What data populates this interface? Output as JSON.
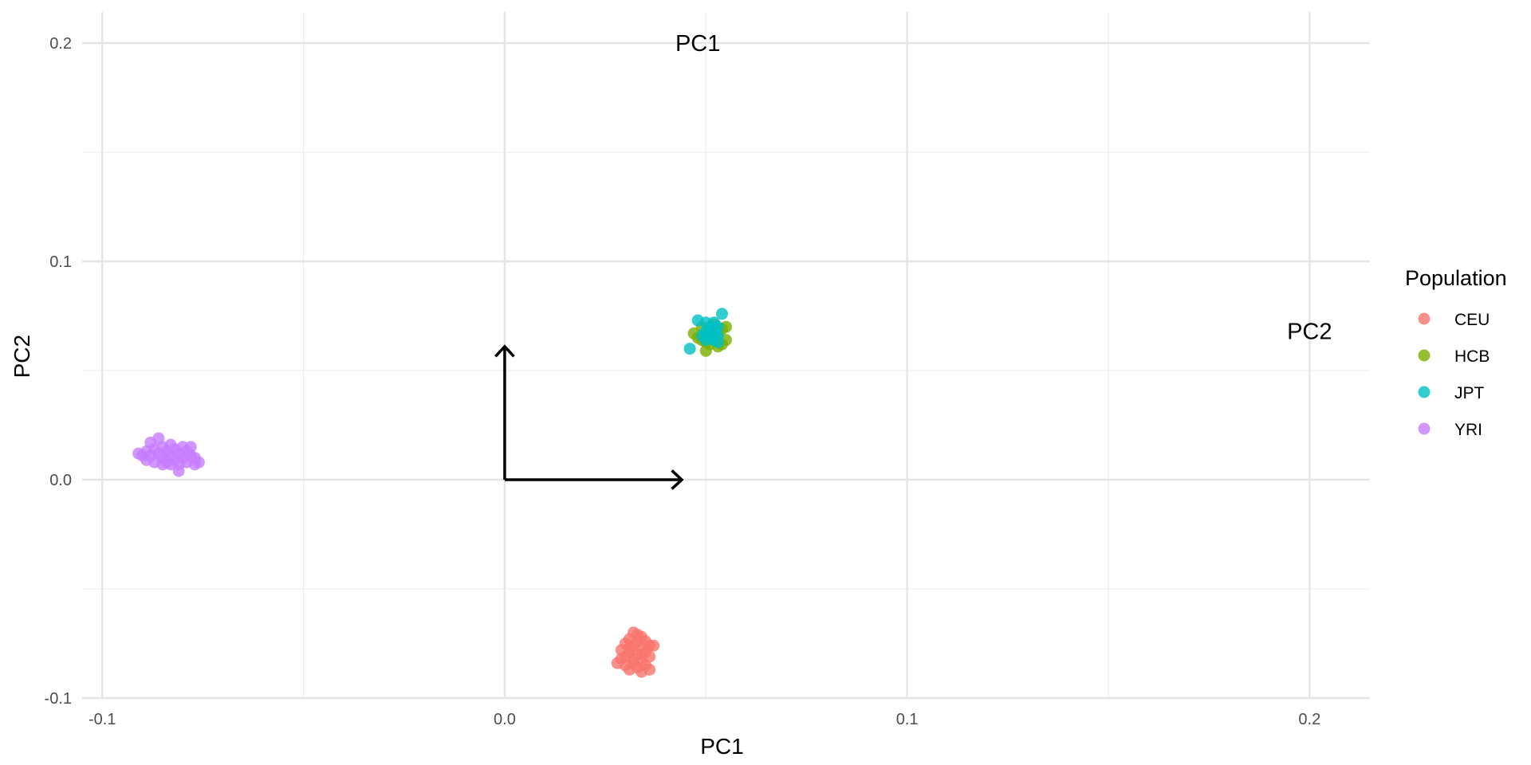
{
  "chart_data": {
    "type": "scatter",
    "title": "",
    "xlabel": "PC1",
    "ylabel": "PC2",
    "xlim": [
      -0.105,
      0.215
    ],
    "ylim": [
      -0.1,
      0.2
    ],
    "x_ticks": [
      -0.1,
      0.0,
      0.1,
      0.2
    ],
    "x_tick_labels": [
      "-0.1",
      "0.0",
      "0.1",
      "0.2"
    ],
    "y_ticks": [
      -0.1,
      0.0,
      0.1,
      0.2
    ],
    "y_tick_labels": [
      "-0.1",
      "0.0",
      "0.1",
      "0.2"
    ],
    "grid": true,
    "legend": {
      "title": "Population",
      "position": "right",
      "entries": [
        "CEU",
        "HCB",
        "JPT",
        "YRI"
      ]
    },
    "series": [
      {
        "name": "CEU",
        "color": "#F8766D",
        "points": [
          [
            0.032,
            -0.07
          ],
          [
            0.033,
            -0.071
          ],
          [
            0.034,
            -0.072
          ],
          [
            0.031,
            -0.073
          ],
          [
            0.033,
            -0.074
          ],
          [
            0.035,
            -0.074
          ],
          [
            0.036,
            -0.076
          ],
          [
            0.03,
            -0.075
          ],
          [
            0.032,
            -0.076
          ],
          [
            0.034,
            -0.077
          ],
          [
            0.037,
            -0.076
          ],
          [
            0.029,
            -0.078
          ],
          [
            0.031,
            -0.079
          ],
          [
            0.033,
            -0.08
          ],
          [
            0.035,
            -0.079
          ],
          [
            0.036,
            -0.081
          ],
          [
            0.03,
            -0.081
          ],
          [
            0.032,
            -0.082
          ],
          [
            0.034,
            -0.083
          ],
          [
            0.028,
            -0.084
          ],
          [
            0.03,
            -0.085
          ],
          [
            0.033,
            -0.086
          ],
          [
            0.035,
            -0.085
          ],
          [
            0.031,
            -0.087
          ],
          [
            0.034,
            -0.088
          ],
          [
            0.036,
            -0.087
          ],
          [
            0.032,
            -0.084
          ],
          [
            0.029,
            -0.082
          ],
          [
            0.034,
            -0.08
          ],
          [
            0.031,
            -0.077
          ]
        ]
      },
      {
        "name": "HCB",
        "color": "#7CAE00",
        "points": [
          [
            0.047,
            0.067
          ],
          [
            0.049,
            0.064
          ],
          [
            0.05,
            0.066
          ],
          [
            0.051,
            0.068
          ],
          [
            0.052,
            0.065
          ],
          [
            0.053,
            0.067
          ],
          [
            0.054,
            0.069
          ],
          [
            0.055,
            0.064
          ],
          [
            0.051,
            0.062
          ],
          [
            0.05,
            0.059
          ],
          [
            0.053,
            0.061
          ],
          [
            0.054,
            0.062
          ],
          [
            0.049,
            0.07
          ],
          [
            0.052,
            0.071
          ],
          [
            0.055,
            0.07
          ],
          [
            0.048,
            0.065
          ],
          [
            0.05,
            0.063
          ]
        ]
      },
      {
        "name": "JPT",
        "color": "#00BFC4",
        "points": [
          [
            0.048,
            0.073
          ],
          [
            0.05,
            0.072
          ],
          [
            0.051,
            0.07
          ],
          [
            0.052,
            0.069
          ],
          [
            0.05,
            0.068
          ],
          [
            0.052,
            0.067
          ],
          [
            0.053,
            0.066
          ],
          [
            0.051,
            0.065
          ],
          [
            0.052,
            0.064
          ],
          [
            0.053,
            0.063
          ],
          [
            0.049,
            0.066
          ],
          [
            0.05,
            0.064
          ],
          [
            0.053,
            0.07
          ],
          [
            0.052,
            0.072
          ],
          [
            0.054,
            0.076
          ],
          [
            0.046,
            0.06
          ],
          [
            0.051,
            0.067
          ]
        ]
      },
      {
        "name": "YRI",
        "color": "#C77CFF",
        "points": [
          [
            -0.091,
            0.012
          ],
          [
            -0.09,
            0.011
          ],
          [
            -0.089,
            0.013
          ],
          [
            -0.089,
            0.009
          ],
          [
            -0.088,
            0.017
          ],
          [
            -0.088,
            0.011
          ],
          [
            -0.087,
            0.008
          ],
          [
            -0.087,
            0.014
          ],
          [
            -0.086,
            0.019
          ],
          [
            -0.086,
            0.012
          ],
          [
            -0.085,
            0.01
          ],
          [
            -0.085,
            0.015
          ],
          [
            -0.084,
            0.008
          ],
          [
            -0.084,
            0.013
          ],
          [
            -0.083,
            0.016
          ],
          [
            -0.083,
            0.011
          ],
          [
            -0.082,
            0.009
          ],
          [
            -0.082,
            0.014
          ],
          [
            -0.081,
            0.012
          ],
          [
            -0.081,
            0.004
          ],
          [
            -0.08,
            0.015
          ],
          [
            -0.08,
            0.01
          ],
          [
            -0.079,
            0.013
          ],
          [
            -0.079,
            0.008
          ],
          [
            -0.078,
            0.011
          ],
          [
            -0.078,
            0.015
          ],
          [
            -0.077,
            0.007
          ],
          [
            -0.077,
            0.01
          ],
          [
            -0.076,
            0.008
          ],
          [
            -0.085,
            0.007
          ],
          [
            -0.083,
            0.007
          ],
          [
            -0.081,
            0.007
          ]
        ]
      }
    ],
    "annotations": [
      {
        "text": "PC1",
        "x": 0.048,
        "y": 0.2
      },
      {
        "text": "PC2",
        "x": 0.2,
        "y": 0.068
      }
    ],
    "arrows": [
      {
        "from": [
          0.0,
          0.0
        ],
        "to": [
          0.044,
          0.0
        ]
      },
      {
        "from": [
          0.0,
          0.0
        ],
        "to": [
          0.0,
          0.061
        ]
      }
    ]
  }
}
